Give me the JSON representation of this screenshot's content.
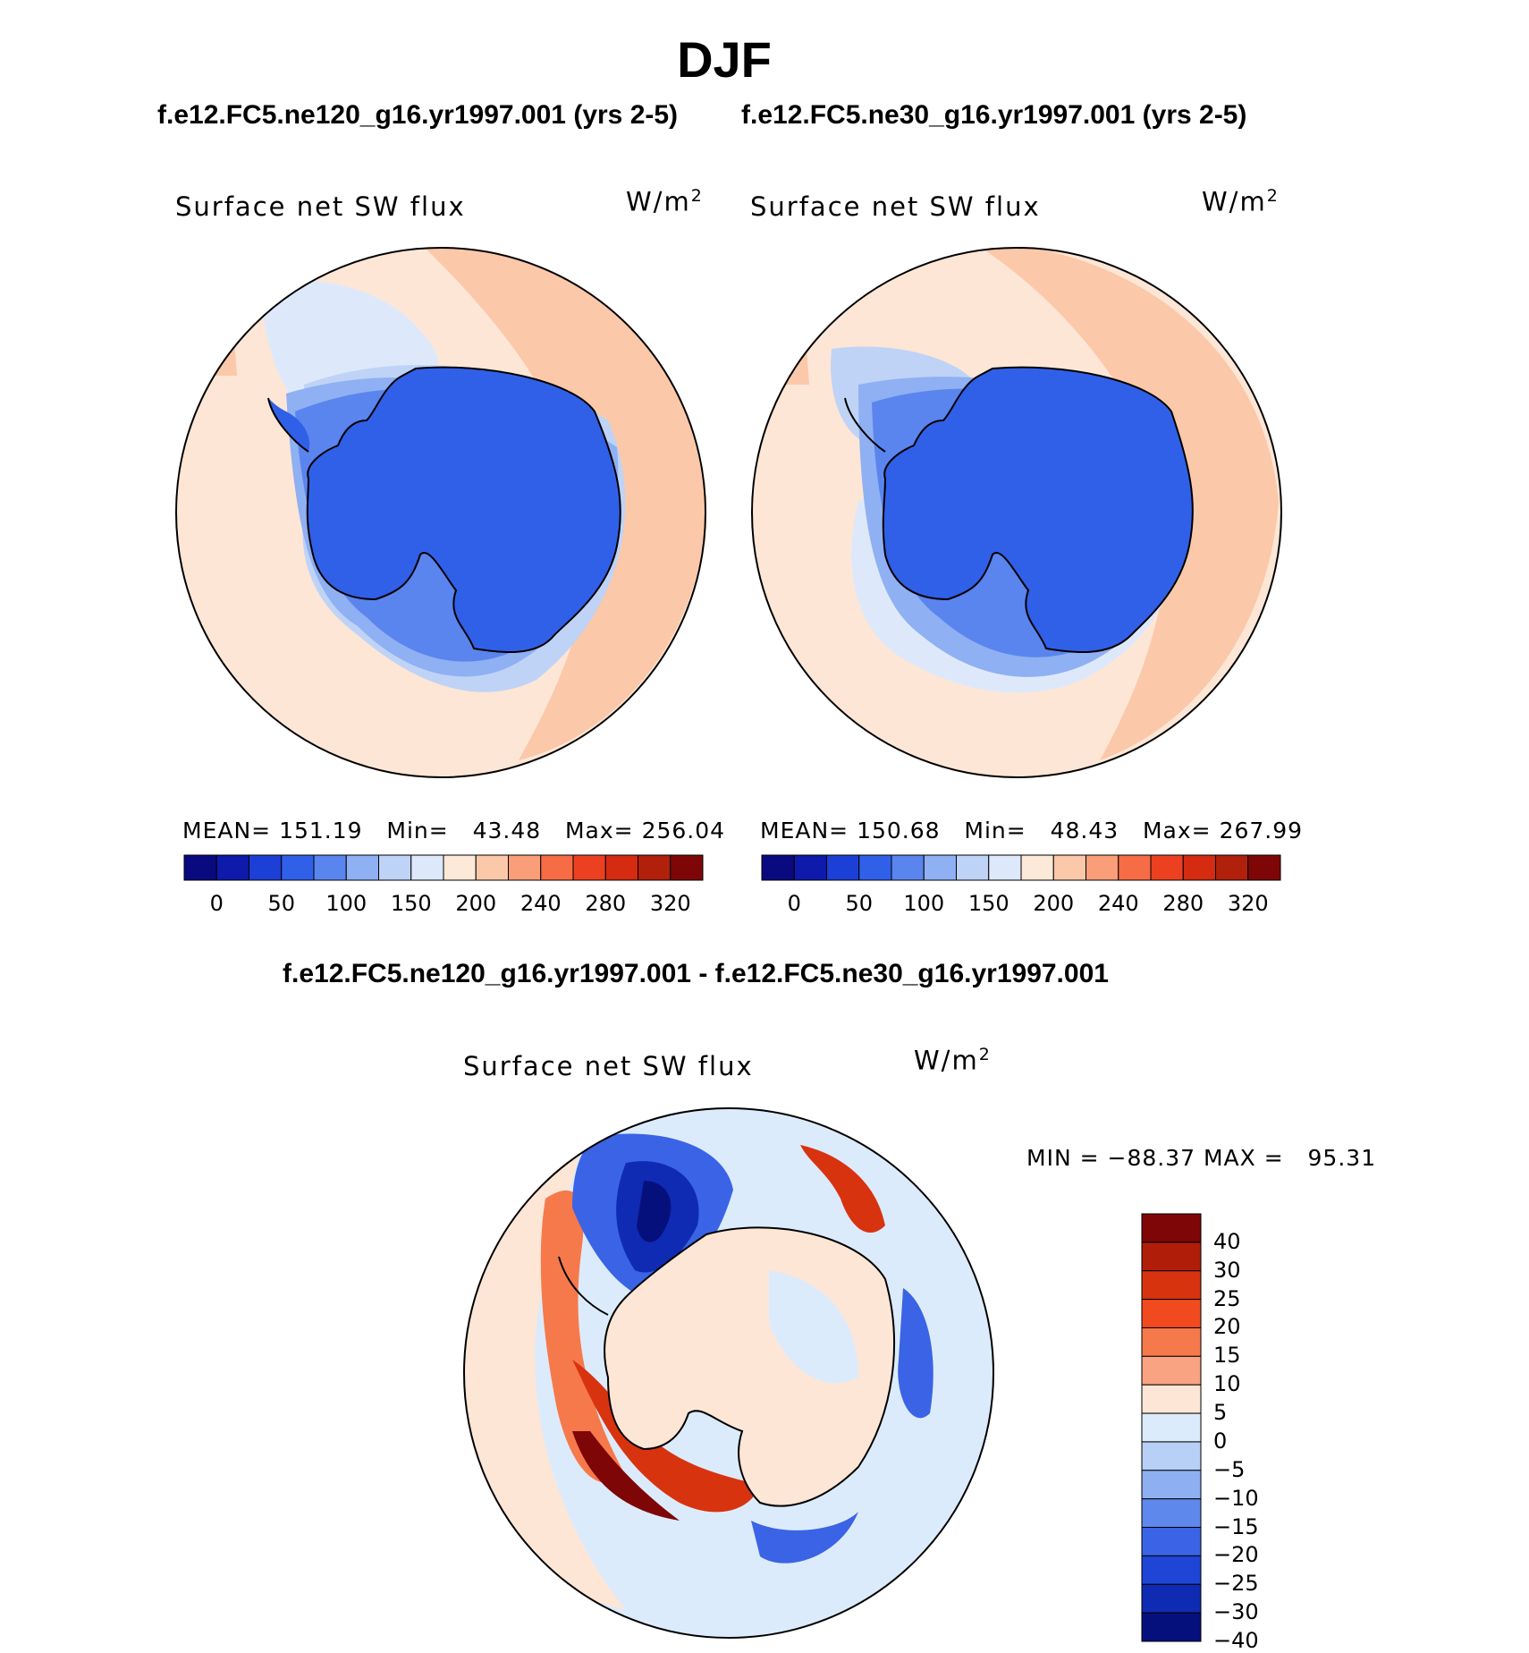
{
  "figure": {
    "title": "DJF",
    "case_a_title": "f.e12.FC5.ne120_g16.yr1997.001 (yrs 2-5)",
    "case_b_title": "f.e12.FC5.ne30_g16.yr1997.001 (yrs 2-5)",
    "diff_title": "f.e12.FC5.ne120_g16.yr1997.001 - f.e12.FC5.ne30_g16.yr1997.001"
  },
  "chart_data": [
    {
      "type": "heatmap",
      "projection": "south-polar-stereographic",
      "variable": "Surface net SW flux",
      "units": "W/m",
      "units_exponent": "2",
      "stats": {
        "mean_label": "MEAN=",
        "mean": "151.19",
        "min_label": "Min=",
        "min": "43.48",
        "max_label": "Max=",
        "max": "256.04"
      },
      "colorbar": {
        "ticks": [
          "0",
          "50",
          "100",
          "150",
          "200",
          "240",
          "280",
          "320"
        ],
        "colors": [
          "#0a0a80",
          "#0d1aaa",
          "#1c3fd6",
          "#3160e8",
          "#5a85ee",
          "#8fb0f2",
          "#bfd3f7",
          "#dde9fb",
          "#fde9d8",
          "#fbc8a9",
          "#f99e78",
          "#f56c45",
          "#ec4120",
          "#d52b10",
          "#b0200a",
          "#7e0606"
        ]
      }
    },
    {
      "type": "heatmap",
      "projection": "south-polar-stereographic",
      "variable": "Surface net SW flux",
      "units": "W/m",
      "units_exponent": "2",
      "stats": {
        "mean_label": "MEAN=",
        "mean": "150.68",
        "min_label": "Min=",
        "min": "48.43",
        "max_label": "Max=",
        "max": "267.99"
      },
      "colorbar": {
        "ticks": [
          "0",
          "50",
          "100",
          "150",
          "200",
          "240",
          "280",
          "320"
        ],
        "colors": [
          "#0a0a80",
          "#0d1aaa",
          "#1c3fd6",
          "#3160e8",
          "#5a85ee",
          "#8fb0f2",
          "#bfd3f7",
          "#dde9fb",
          "#fde9d8",
          "#fbc8a9",
          "#f99e78",
          "#f56c45",
          "#ec4120",
          "#d52b10",
          "#b0200a",
          "#7e0606"
        ]
      }
    },
    {
      "type": "heatmap",
      "projection": "south-polar-stereographic",
      "variable": "Surface net SW flux",
      "units": "W/m",
      "units_exponent": "2",
      "stats": {
        "min_label": "MIN =",
        "min": "−88.37",
        "max_label": "MAX =",
        "max": "95.31"
      },
      "colorbar": {
        "ticks": [
          "40",
          "30",
          "25",
          "20",
          "15",
          "10",
          "5",
          "0",
          "−5",
          "−10",
          "−15",
          "−20",
          "−25",
          "−30",
          "−40"
        ],
        "colors": [
          "#7e0606",
          "#b01e0a",
          "#d8330f",
          "#f24a1f",
          "#f6794b",
          "#f9a382",
          "#fde6d6",
          "#dcebfb",
          "#b8d0f6",
          "#8eb0f1",
          "#5f88ec",
          "#3a64e5",
          "#1e45d6",
          "#0f2bb4",
          "#06107d"
        ]
      }
    }
  ]
}
